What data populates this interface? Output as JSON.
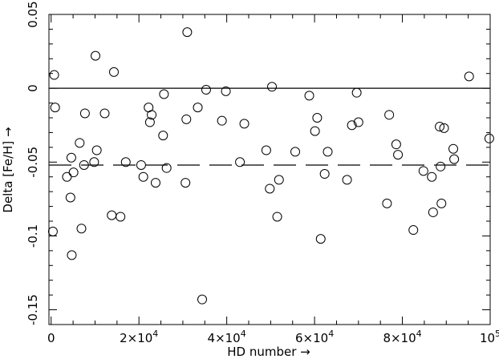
{
  "chart_data": {
    "type": "scatter",
    "title": "",
    "xlabel": "HD number →",
    "ylabel": "Delta [Fe/H] →",
    "xlim": [
      -500,
      100000
    ],
    "ylim": [
      -0.16,
      0.05
    ],
    "x_ticks": [
      {
        "value": 0,
        "label": "0"
      },
      {
        "value": 20000,
        "label": "2×10",
        "exp": "4"
      },
      {
        "value": 40000,
        "label": "4×10",
        "exp": "4"
      },
      {
        "value": 60000,
        "label": "6×10",
        "exp": "4"
      },
      {
        "value": 80000,
        "label": "8×10",
        "exp": "4"
      },
      {
        "value": 100000,
        "label": "10",
        "exp": "5"
      }
    ],
    "y_ticks": [
      {
        "value": 0.05,
        "label": "0.05"
      },
      {
        "value": 0,
        "label": "0"
      },
      {
        "value": -0.05,
        "label": "-0.05"
      },
      {
        "value": -0.1,
        "label": "-0.1"
      },
      {
        "value": -0.15,
        "label": "-0.15"
      }
    ],
    "grid": false,
    "reference_lines": [
      {
        "y": 0,
        "style": "solid"
      },
      {
        "y": -0.052,
        "style": "dashed"
      }
    ],
    "points": [
      {
        "x": 400,
        "y": -0.097
      },
      {
        "x": 700,
        "y": 0.009
      },
      {
        "x": 900,
        "y": -0.013
      },
      {
        "x": 3600,
        "y": -0.06
      },
      {
        "x": 4400,
        "y": -0.074
      },
      {
        "x": 4600,
        "y": -0.047
      },
      {
        "x": 4700,
        "y": -0.113
      },
      {
        "x": 5100,
        "y": -0.057
      },
      {
        "x": 6500,
        "y": -0.037
      },
      {
        "x": 6900,
        "y": -0.095
      },
      {
        "x": 7500,
        "y": -0.052
      },
      {
        "x": 7700,
        "y": -0.017
      },
      {
        "x": 9800,
        "y": -0.05
      },
      {
        "x": 10100,
        "y": 0.022
      },
      {
        "x": 10400,
        "y": -0.042
      },
      {
        "x": 12200,
        "y": -0.017
      },
      {
        "x": 13800,
        "y": -0.086
      },
      {
        "x": 14300,
        "y": 0.011
      },
      {
        "x": 15800,
        "y": -0.087
      },
      {
        "x": 17000,
        "y": -0.05
      },
      {
        "x": 20500,
        "y": -0.052
      },
      {
        "x": 21000,
        "y": -0.06
      },
      {
        "x": 22200,
        "y": -0.013
      },
      {
        "x": 22500,
        "y": -0.023
      },
      {
        "x": 22900,
        "y": -0.018
      },
      {
        "x": 23800,
        "y": -0.064
      },
      {
        "x": 25500,
        "y": -0.032
      },
      {
        "x": 25700,
        "y": -0.004
      },
      {
        "x": 26300,
        "y": -0.054
      },
      {
        "x": 30600,
        "y": -0.064
      },
      {
        "x": 30800,
        "y": -0.021
      },
      {
        "x": 31000,
        "y": 0.038
      },
      {
        "x": 33400,
        "y": -0.013
      },
      {
        "x": 34400,
        "y": -0.143
      },
      {
        "x": 35300,
        "y": -0.001
      },
      {
        "x": 38900,
        "y": -0.022
      },
      {
        "x": 39800,
        "y": -0.002
      },
      {
        "x": 43000,
        "y": -0.05
      },
      {
        "x": 44000,
        "y": -0.024
      },
      {
        "x": 49000,
        "y": -0.042
      },
      {
        "x": 49800,
        "y": -0.068
      },
      {
        "x": 50300,
        "y": 0.001
      },
      {
        "x": 51500,
        "y": -0.087
      },
      {
        "x": 51900,
        "y": -0.062
      },
      {
        "x": 55600,
        "y": -0.043
      },
      {
        "x": 58800,
        "y": -0.005
      },
      {
        "x": 60100,
        "y": -0.029
      },
      {
        "x": 60600,
        "y": -0.02
      },
      {
        "x": 61400,
        "y": -0.102
      },
      {
        "x": 62300,
        "y": -0.058
      },
      {
        "x": 63000,
        "y": -0.043
      },
      {
        "x": 67400,
        "y": -0.062
      },
      {
        "x": 68500,
        "y": -0.025
      },
      {
        "x": 69600,
        "y": -0.003
      },
      {
        "x": 70000,
        "y": -0.023
      },
      {
        "x": 76500,
        "y": -0.078
      },
      {
        "x": 77000,
        "y": -0.018
      },
      {
        "x": 78600,
        "y": -0.038
      },
      {
        "x": 79000,
        "y": -0.045
      },
      {
        "x": 82500,
        "y": -0.096
      },
      {
        "x": 84800,
        "y": -0.056
      },
      {
        "x": 86700,
        "y": -0.06
      },
      {
        "x": 87000,
        "y": -0.084
      },
      {
        "x": 88500,
        "y": -0.026
      },
      {
        "x": 88700,
        "y": -0.053
      },
      {
        "x": 88900,
        "y": -0.078
      },
      {
        "x": 89500,
        "y": -0.027
      },
      {
        "x": 91600,
        "y": -0.041
      },
      {
        "x": 91800,
        "y": -0.048
      },
      {
        "x": 95200,
        "y": 0.008
      },
      {
        "x": 99800,
        "y": -0.034
      }
    ]
  }
}
